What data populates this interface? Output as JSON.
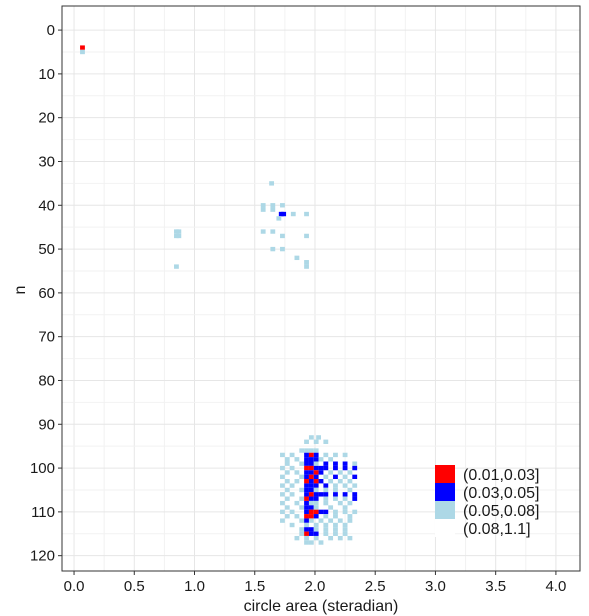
{
  "chart_data": {
    "type": "heatmap",
    "xlabel": "circle area (steradian)",
    "ylabel": "n",
    "xlim": [
      -0.1,
      4.2
    ],
    "ylim": [
      -5.5,
      123.5
    ],
    "y_reversed": true,
    "x_ticks": [
      "0.0",
      "0.5",
      "1.0",
      "1.5",
      "2.0",
      "2.5",
      "3.0",
      "3.5",
      "4.0"
    ],
    "y_ticks": [
      "0",
      "10",
      "20",
      "30",
      "40",
      "50",
      "60",
      "70",
      "80",
      "90",
      "100",
      "110",
      "120"
    ],
    "grid": true,
    "legend_position": "bottom-right",
    "legend": [
      {
        "label": "(0.01,0.03]",
        "color": "#ff0000"
      },
      {
        "label": "(0.03,0.05]",
        "color": "#0000ff"
      },
      {
        "label": "(0.05,0.08]",
        "color": "#add8e6"
      },
      {
        "label": "(0.08,1.1]",
        "color": "#ffffff"
      }
    ],
    "cell_width": 0.04,
    "cells": [
      [
        0.07,
        4,
        0
      ],
      [
        0.07,
        5,
        2
      ],
      [
        0.85,
        46,
        2
      ],
      [
        0.87,
        46,
        2
      ],
      [
        0.85,
        47,
        2
      ],
      [
        0.87,
        47,
        2
      ],
      [
        0.85,
        54,
        2
      ],
      [
        1.64,
        35,
        2
      ],
      [
        1.57,
        40,
        2
      ],
      [
        1.65,
        40,
        2
      ],
      [
        1.73,
        40,
        2
      ],
      [
        1.57,
        41,
        2
      ],
      [
        1.65,
        41,
        2
      ],
      [
        1.72,
        42,
        1
      ],
      [
        1.74,
        42,
        1
      ],
      [
        1.82,
        42,
        2
      ],
      [
        1.93,
        42,
        2
      ],
      [
        1.7,
        43,
        2
      ],
      [
        1.57,
        46,
        2
      ],
      [
        1.65,
        46,
        2
      ],
      [
        1.73,
        47,
        2
      ],
      [
        1.93,
        47,
        2
      ],
      [
        1.65,
        50,
        2
      ],
      [
        1.73,
        50,
        2
      ],
      [
        1.85,
        52,
        2
      ],
      [
        1.93,
        53,
        2
      ],
      [
        1.93,
        54,
        2
      ],
      [
        1.97,
        93,
        2
      ],
      [
        2.03,
        93,
        2
      ],
      [
        1.93,
        94,
        2
      ],
      [
        2.01,
        94,
        2
      ],
      [
        2.09,
        94,
        2
      ],
      [
        1.89,
        96,
        2
      ],
      [
        1.93,
        96,
        2
      ],
      [
        1.97,
        96,
        2
      ],
      [
        2.01,
        96,
        2
      ],
      [
        1.73,
        97,
        2
      ],
      [
        1.81,
        97,
        2
      ],
      [
        1.93,
        97,
        1
      ],
      [
        1.97,
        97,
        0
      ],
      [
        2.01,
        97,
        1
      ],
      [
        2.09,
        97,
        2
      ],
      [
        2.17,
        97,
        2
      ],
      [
        2.25,
        97,
        2
      ],
      [
        1.77,
        98,
        2
      ],
      [
        1.85,
        98,
        2
      ],
      [
        1.93,
        98,
        1
      ],
      [
        1.97,
        98,
        1
      ],
      [
        2.01,
        98,
        1
      ],
      [
        2.05,
        98,
        2
      ],
      [
        2.13,
        98,
        2
      ],
      [
        1.77,
        99,
        2
      ],
      [
        1.89,
        99,
        2
      ],
      [
        1.93,
        99,
        1
      ],
      [
        1.97,
        99,
        1
      ],
      [
        2.01,
        99,
        2
      ],
      [
        2.09,
        99,
        1
      ],
      [
        2.17,
        99,
        1
      ],
      [
        2.25,
        99,
        1
      ],
      [
        2.33,
        99,
        2
      ],
      [
        1.73,
        100,
        2
      ],
      [
        1.81,
        100,
        2
      ],
      [
        1.93,
        100,
        0
      ],
      [
        1.97,
        100,
        0
      ],
      [
        2.01,
        100,
        1
      ],
      [
        2.05,
        100,
        1
      ],
      [
        2.09,
        100,
        1
      ],
      [
        2.17,
        100,
        1
      ],
      [
        2.25,
        100,
        1
      ],
      [
        2.33,
        100,
        1
      ],
      [
        1.77,
        101,
        2
      ],
      [
        1.85,
        101,
        2
      ],
      [
        1.93,
        101,
        1
      ],
      [
        1.97,
        101,
        1
      ],
      [
        2.01,
        101,
        0
      ],
      [
        2.05,
        101,
        1
      ],
      [
        2.13,
        101,
        2
      ],
      [
        2.21,
        101,
        2
      ],
      [
        2.29,
        101,
        2
      ],
      [
        1.73,
        102,
        2
      ],
      [
        1.89,
        102,
        2
      ],
      [
        1.93,
        102,
        1
      ],
      [
        1.97,
        102,
        0
      ],
      [
        2.01,
        102,
        1
      ],
      [
        2.09,
        102,
        2
      ],
      [
        2.17,
        102,
        1
      ],
      [
        2.25,
        102,
        2
      ],
      [
        2.33,
        102,
        1
      ],
      [
        1.77,
        103,
        2
      ],
      [
        1.85,
        103,
        2
      ],
      [
        1.93,
        103,
        0
      ],
      [
        1.97,
        103,
        1
      ],
      [
        2.01,
        103,
        0
      ],
      [
        2.05,
        103,
        1
      ],
      [
        2.13,
        103,
        2
      ],
      [
        2.21,
        103,
        2
      ],
      [
        2.29,
        103,
        2
      ],
      [
        1.73,
        104,
        2
      ],
      [
        1.81,
        104,
        2
      ],
      [
        1.93,
        104,
        1
      ],
      [
        1.97,
        104,
        1
      ],
      [
        2.01,
        104,
        1
      ],
      [
        2.09,
        104,
        1
      ],
      [
        2.17,
        104,
        2
      ],
      [
        2.25,
        104,
        2
      ],
      [
        2.33,
        104,
        2
      ],
      [
        1.77,
        105,
        2
      ],
      [
        1.89,
        105,
        2
      ],
      [
        1.93,
        105,
        1
      ],
      [
        1.97,
        105,
        1
      ],
      [
        2.01,
        105,
        2
      ],
      [
        2.09,
        105,
        2
      ],
      [
        2.17,
        105,
        2
      ],
      [
        2.29,
        105,
        2
      ],
      [
        1.73,
        106,
        2
      ],
      [
        1.81,
        106,
        2
      ],
      [
        1.93,
        106,
        1
      ],
      [
        1.97,
        106,
        0
      ],
      [
        2.01,
        106,
        1
      ],
      [
        2.05,
        106,
        1
      ],
      [
        2.09,
        106,
        1
      ],
      [
        2.17,
        106,
        1
      ],
      [
        2.25,
        106,
        1
      ],
      [
        2.33,
        106,
        1
      ],
      [
        1.77,
        107,
        2
      ],
      [
        1.89,
        107,
        2
      ],
      [
        1.93,
        107,
        0
      ],
      [
        1.97,
        107,
        1
      ],
      [
        2.01,
        107,
        1
      ],
      [
        2.09,
        107,
        2
      ],
      [
        2.17,
        107,
        2
      ],
      [
        2.25,
        107,
        2
      ],
      [
        2.33,
        107,
        1
      ],
      [
        1.73,
        108,
        2
      ],
      [
        1.85,
        108,
        2
      ],
      [
        1.93,
        108,
        1
      ],
      [
        1.97,
        108,
        2
      ],
      [
        2.01,
        108,
        2
      ],
      [
        2.09,
        108,
        2
      ],
      [
        2.21,
        108,
        2
      ],
      [
        2.29,
        108,
        2
      ],
      [
        1.77,
        109,
        2
      ],
      [
        1.89,
        109,
        2
      ],
      [
        1.93,
        109,
        1
      ],
      [
        1.97,
        109,
        1
      ],
      [
        2.01,
        109,
        2
      ],
      [
        2.13,
        109,
        2
      ],
      [
        2.25,
        109,
        2
      ],
      [
        1.73,
        110,
        2
      ],
      [
        1.81,
        110,
        2
      ],
      [
        1.93,
        110,
        1
      ],
      [
        1.97,
        110,
        0
      ],
      [
        2.01,
        110,
        0
      ],
      [
        2.05,
        110,
        1
      ],
      [
        2.09,
        110,
        1
      ],
      [
        2.17,
        110,
        2
      ],
      [
        2.25,
        110,
        2
      ],
      [
        2.33,
        110,
        2
      ],
      [
        1.77,
        111,
        2
      ],
      [
        1.85,
        111,
        2
      ],
      [
        1.93,
        111,
        0
      ],
      [
        1.97,
        111,
        0
      ],
      [
        2.01,
        111,
        1
      ],
      [
        2.09,
        111,
        2
      ],
      [
        2.17,
        111,
        2
      ],
      [
        2.29,
        111,
        2
      ],
      [
        1.73,
        112,
        2
      ],
      [
        1.89,
        112,
        2
      ],
      [
        1.93,
        112,
        1
      ],
      [
        1.97,
        112,
        2
      ],
      [
        2.05,
        112,
        2
      ],
      [
        2.13,
        112,
        2
      ],
      [
        2.21,
        112,
        2
      ],
      [
        2.29,
        112,
        2
      ],
      [
        1.81,
        113,
        2
      ],
      [
        1.93,
        113,
        2
      ],
      [
        2.01,
        113,
        2
      ],
      [
        2.09,
        113,
        2
      ],
      [
        2.17,
        113,
        2
      ],
      [
        2.25,
        113,
        2
      ],
      [
        1.89,
        114,
        2
      ],
      [
        1.93,
        114,
        1
      ],
      [
        1.97,
        114,
        1
      ],
      [
        2.01,
        114,
        2
      ],
      [
        2.09,
        114,
        2
      ],
      [
        2.17,
        114,
        2
      ],
      [
        2.25,
        114,
        2
      ],
      [
        1.89,
        115,
        2
      ],
      [
        1.93,
        115,
        0
      ],
      [
        1.97,
        115,
        1
      ],
      [
        2.01,
        115,
        1
      ],
      [
        2.09,
        115,
        2
      ],
      [
        2.17,
        115,
        2
      ],
      [
        2.25,
        115,
        2
      ],
      [
        1.85,
        116,
        2
      ],
      [
        1.93,
        116,
        2
      ],
      [
        2.01,
        116,
        2
      ],
      [
        2.13,
        116,
        2
      ],
      [
        2.21,
        116,
        2
      ],
      [
        2.29,
        116,
        2
      ],
      [
        1.93,
        117,
        2
      ],
      [
        1.97,
        117,
        2
      ],
      [
        2.05,
        117,
        2
      ]
    ]
  }
}
